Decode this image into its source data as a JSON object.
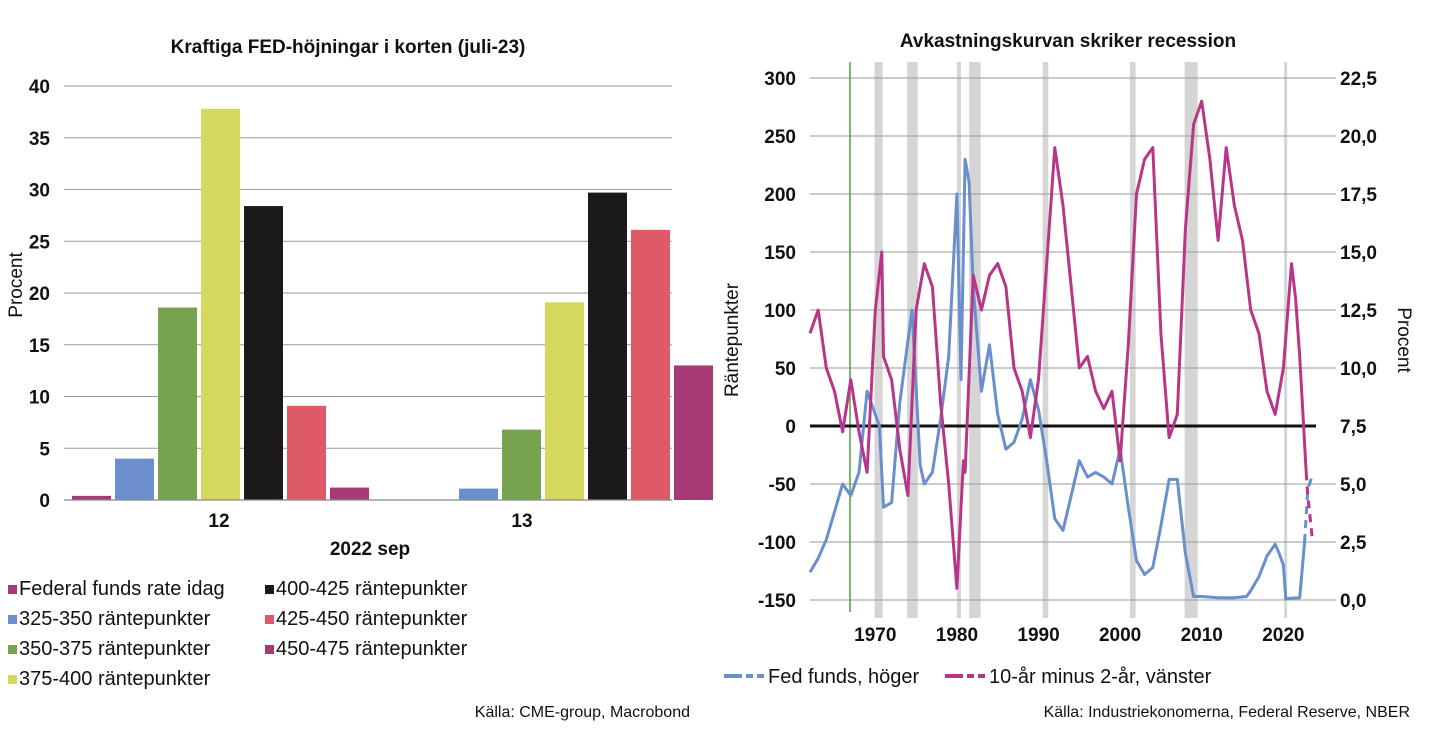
{
  "chart_data": [
    {
      "type": "bar",
      "title": "Kraftiga FED-höjningar i korten (juli-23)",
      "xlabel": "2022 sep",
      "ylabel": "Procent",
      "categories": [
        "12",
        "13"
      ],
      "ylim": [
        0,
        40
      ],
      "yticks": [
        "0",
        "5",
        "10",
        "15",
        "20",
        "25",
        "30",
        "35",
        "40"
      ],
      "grid": true,
      "series": [
        {
          "name": "Federal funds rate idag",
          "color": "#a63a74",
          "values": [
            0.4,
            0
          ]
        },
        {
          "name": "325-350 räntepunkter",
          "color": "#6b8fcc",
          "values": [
            4.0,
            1.1
          ]
        },
        {
          "name": "350-375 räntepunkter",
          "color": "#77a351",
          "values": [
            18.6,
            6.8
          ]
        },
        {
          "name": "375-400 räntepunkter",
          "color": "#d4d85e",
          "values": [
            37.8,
            19.1
          ]
        },
        {
          "name": "400-425 räntepunkter",
          "color": "#1a1a1a",
          "values": [
            28.4,
            29.7
          ]
        },
        {
          "name": "425-450 räntepunkter",
          "color": "#de5a66",
          "values": [
            9.1,
            26.1
          ]
        },
        {
          "name": "450-475 räntepunkter",
          "color": "#a63a74",
          "values": [
            1.2,
            13.0
          ]
        }
      ],
      "legend_order": [
        "Federal funds rate idag",
        "400-425 räntepunkter",
        "325-350 räntepunkter",
        "425-450 räntepunkter",
        "350-375 räntepunkter",
        "450-475 räntepunkter",
        "375-400 räntepunkter"
      ],
      "source": "Källa: CME-group, Macrobond"
    },
    {
      "type": "line",
      "title": "Avkastningskurvan skriker recession",
      "ylabel_left": "Räntepunkter",
      "ylabel_right": "Procent",
      "xlim": [
        1962,
        2024
      ],
      "xticks": [
        "1970",
        "1980",
        "1990",
        "2000",
        "2010",
        "2020"
      ],
      "ylim_left": [
        -150,
        300
      ],
      "yticks_left": [
        "-150",
        "-100",
        "-50",
        "0",
        "50",
        "100",
        "150",
        "200",
        "250",
        "300"
      ],
      "ylim_right": [
        0,
        22.5
      ],
      "yticks_right": [
        "0,0",
        "2,5",
        "5,0",
        "7,5",
        "10,0",
        "12,5",
        "15,0",
        "17,5",
        "20,0",
        "22,5"
      ],
      "zero_line": 0,
      "marker_line_year": 1966.9,
      "recession_bands": [
        [
          1969.9,
          1970.9
        ],
        [
          1973.9,
          1975.2
        ],
        [
          1980.0,
          1980.5
        ],
        [
          1981.5,
          1982.9
        ],
        [
          1990.5,
          1991.2
        ],
        [
          2001.2,
          2001.9
        ],
        [
          2007.9,
          2009.5
        ],
        [
          2020.1,
          2020.35
        ]
      ],
      "series": [
        {
          "name": "Fed funds, höger",
          "axis": "right",
          "color": "#6b8fcc",
          "forecast_from": 2022.6,
          "points": [
            [
              1962,
              1.2
            ],
            [
              1963,
              1.8
            ],
            [
              1964,
              2.6
            ],
            [
              1965,
              3.8
            ],
            [
              1966,
              5.0
            ],
            [
              1967,
              4.5
            ],
            [
              1968,
              5.5
            ],
            [
              1969,
              9.0
            ],
            [
              1970.5,
              7.5
            ],
            [
              1971,
              4.0
            ],
            [
              1972,
              4.2
            ],
            [
              1973,
              8.5
            ],
            [
              1974.5,
              12.5
            ],
            [
              1975.5,
              5.8
            ],
            [
              1976,
              5.0
            ],
            [
              1977,
              5.5
            ],
            [
              1978,
              7.8
            ],
            [
              1979,
              10.5
            ],
            [
              1980,
              17.5
            ],
            [
              1980.5,
              9.5
            ],
            [
              1981,
              19.0
            ],
            [
              1981.5,
              18.0
            ],
            [
              1982,
              13.5
            ],
            [
              1983,
              9.0
            ],
            [
              1984,
              11.0
            ],
            [
              1985,
              8.0
            ],
            [
              1986,
              6.5
            ],
            [
              1987,
              6.8
            ],
            [
              1988,
              7.8
            ],
            [
              1989,
              9.5
            ],
            [
              1990,
              8.2
            ],
            [
              1991,
              6.0
            ],
            [
              1992,
              3.5
            ],
            [
              1993,
              3.0
            ],
            [
              1994,
              4.5
            ],
            [
              1995,
              6.0
            ],
            [
              1996,
              5.3
            ],
            [
              1997,
              5.5
            ],
            [
              1998,
              5.3
            ],
            [
              1999,
              5.0
            ],
            [
              2000,
              6.5
            ],
            [
              2001,
              4.0
            ],
            [
              2002,
              1.7
            ],
            [
              2003,
              1.1
            ],
            [
              2004,
              1.4
            ],
            [
              2005,
              3.2
            ],
            [
              2006,
              5.2
            ],
            [
              2007,
              5.2
            ],
            [
              2008,
              2.0
            ],
            [
              2009,
              0.15
            ],
            [
              2010,
              0.15
            ],
            [
              2012,
              0.1
            ],
            [
              2014,
              0.1
            ],
            [
              2015.5,
              0.15
            ],
            [
              2016,
              0.4
            ],
            [
              2017,
              1.0
            ],
            [
              2018,
              1.9
            ],
            [
              2019,
              2.4
            ],
            [
              2019.5,
              2.0
            ],
            [
              2020,
              1.5
            ],
            [
              2020.3,
              0.05
            ],
            [
              2021,
              0.08
            ],
            [
              2022,
              0.1
            ],
            [
              2022.6,
              2.5
            ],
            [
              2023,
              4.8
            ],
            [
              2023.5,
              5.3
            ]
          ]
        },
        {
          "name": "10-år minus 2-år, vänster",
          "axis": "left",
          "color": "#b8368a",
          "forecast_from": 2022.8,
          "points": [
            [
              1962,
              80
            ],
            [
              1963,
              100
            ],
            [
              1964,
              50
            ],
            [
              1965,
              30
            ],
            [
              1966,
              -5
            ],
            [
              1967,
              40
            ],
            [
              1968,
              -5
            ],
            [
              1969,
              -40
            ],
            [
              1970,
              100
            ],
            [
              1970.8,
              150
            ],
            [
              1971,
              60
            ],
            [
              1972,
              40
            ],
            [
              1973,
              -20
            ],
            [
              1974,
              -60
            ],
            [
              1975,
              100
            ],
            [
              1976,
              140
            ],
            [
              1977,
              120
            ],
            [
              1978,
              20
            ],
            [
              1979,
              -50
            ],
            [
              1980,
              -140
            ],
            [
              1980.8,
              -30
            ],
            [
              1981,
              -40
            ],
            [
              1982,
              130
            ],
            [
              1983,
              100
            ],
            [
              1984,
              130
            ],
            [
              1985,
              140
            ],
            [
              1986,
              120
            ],
            [
              1987,
              50
            ],
            [
              1988,
              30
            ],
            [
              1989,
              -10
            ],
            [
              1990,
              40
            ],
            [
              1991,
              140
            ],
            [
              1992,
              240
            ],
            [
              1993,
              190
            ],
            [
              1994,
              120
            ],
            [
              1995,
              50
            ],
            [
              1996,
              60
            ],
            [
              1997,
              30
            ],
            [
              1998,
              15
            ],
            [
              1999,
              30
            ],
            [
              2000,
              -30
            ],
            [
              2001,
              70
            ],
            [
              2002,
              200
            ],
            [
              2003,
              230
            ],
            [
              2004,
              240
            ],
            [
              2005,
              80
            ],
            [
              2006,
              -10
            ],
            [
              2007,
              10
            ],
            [
              2008,
              170
            ],
            [
              2009,
              260
            ],
            [
              2010,
              280
            ],
            [
              2011,
              230
            ],
            [
              2012,
              160
            ],
            [
              2013,
              240
            ],
            [
              2014,
              190
            ],
            [
              2015,
              160
            ],
            [
              2016,
              100
            ],
            [
              2017,
              80
            ],
            [
              2018,
              30
            ],
            [
              2019,
              10
            ],
            [
              2020,
              50
            ],
            [
              2021,
              140
            ],
            [
              2021.5,
              110
            ],
            [
              2022,
              60
            ],
            [
              2022.8,
              -40
            ],
            [
              2023,
              -60
            ],
            [
              2023.6,
              -100
            ]
          ]
        }
      ],
      "source": "Källa: Industriekonomerna, Federal Reserve, NBER"
    }
  ]
}
